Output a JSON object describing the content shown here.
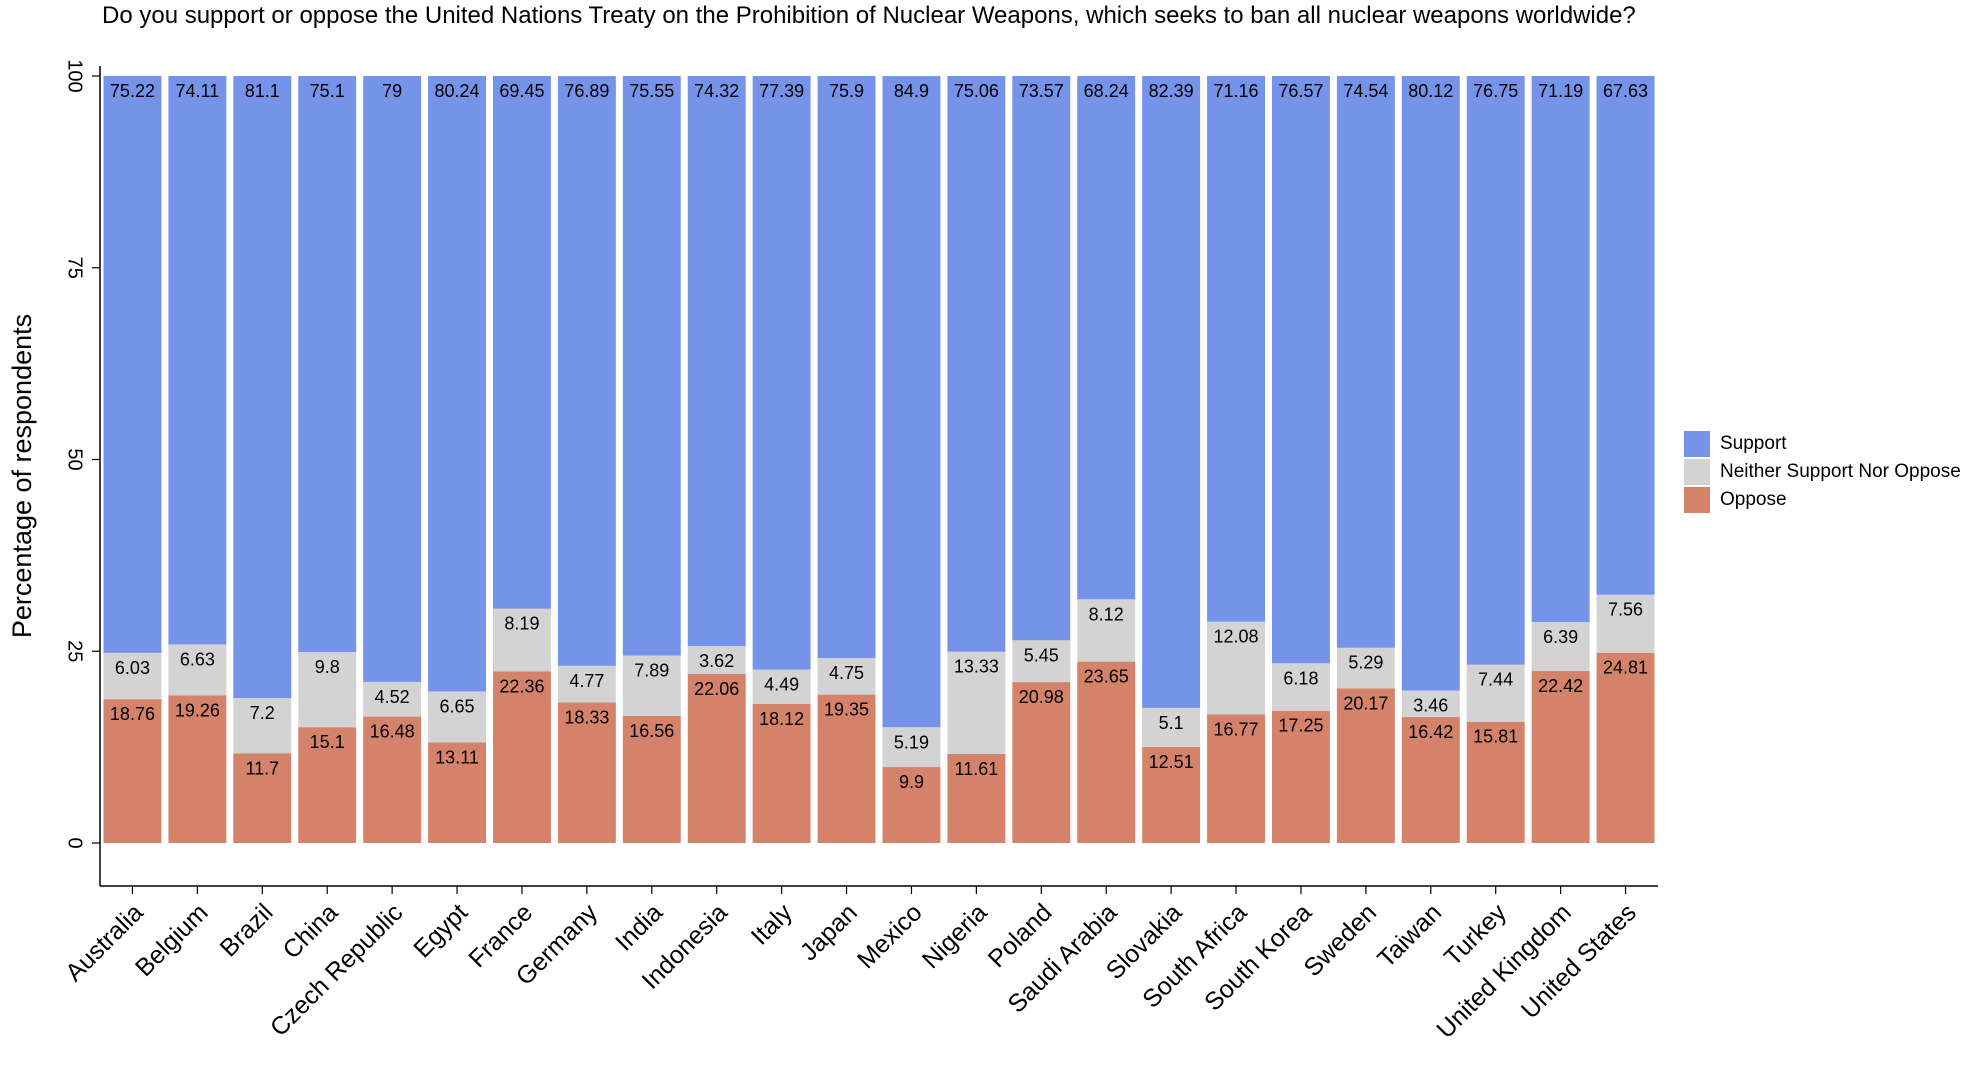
{
  "chart_data": {
    "type": "bar",
    "stacked": true,
    "title": "Do you support or oppose the United Nations Treaty on the Prohibition of Nuclear Weapons, which seeks to ban all nuclear weapons worldwide?",
    "xlabel": "",
    "ylabel": "Percentage of respondents",
    "ylim": [
      0,
      100
    ],
    "yticks": [
      "0",
      "25",
      "50",
      "75",
      "100"
    ],
    "grid": false,
    "legend_position": "right",
    "categories": [
      "Australia",
      "Belgium",
      "Brazil",
      "China",
      "Czech Republic",
      "Egypt",
      "France",
      "Germany",
      "India",
      "Indonesia",
      "Italy",
      "Japan",
      "Mexico",
      "Nigeria",
      "Poland",
      "Saudi Arabia",
      "Slovakia",
      "South Africa",
      "South Korea",
      "Sweden",
      "Taiwan",
      "Turkey",
      "United Kingdom",
      "United States"
    ],
    "series": [
      {
        "name": "Oppose",
        "color": "#d4826a",
        "values": [
          18.76,
          19.26,
          11.7,
          15.1,
          16.48,
          13.11,
          22.36,
          18.33,
          16.56,
          22.06,
          18.12,
          19.35,
          9.9,
          11.61,
          20.98,
          23.65,
          12.51,
          16.77,
          17.25,
          20.17,
          16.42,
          15.81,
          22.42,
          24.81
        ]
      },
      {
        "name": "Neither Support Nor Oppose",
        "color": "#d3d3d3",
        "values": [
          6.03,
          6.63,
          7.2,
          9.8,
          4.52,
          6.65,
          8.19,
          4.77,
          7.89,
          3.62,
          4.49,
          4.75,
          5.19,
          13.33,
          5.45,
          8.12,
          5.1,
          12.08,
          6.18,
          5.29,
          3.46,
          7.44,
          6.39,
          7.56
        ]
      },
      {
        "name": "Support",
        "color": "#7593e8",
        "values": [
          75.22,
          74.11,
          81.1,
          75.1,
          79,
          80.24,
          69.45,
          76.89,
          75.55,
          74.32,
          77.39,
          75.9,
          84.9,
          75.06,
          73.57,
          68.24,
          82.39,
          71.16,
          76.57,
          74.54,
          80.12,
          76.75,
          71.19,
          67.63
        ]
      }
    ],
    "value_labels": {
      "Oppose": [
        "18.76",
        "19.26",
        "11.7",
        "15.1",
        "16.48",
        "13.11",
        "22.36",
        "18.33",
        "16.56",
        "22.06",
        "18.12",
        "19.35",
        "9.9",
        "11.61",
        "20.98",
        "23.65",
        "12.51",
        "16.77",
        "17.25",
        "20.17",
        "16.42",
        "15.81",
        "22.42",
        "24.81"
      ],
      "Neither Support Nor Oppose": [
        "6.03",
        "6.63",
        "7.2",
        "9.8",
        "4.52",
        "6.65",
        "8.19",
        "4.77",
        "7.89",
        "3.62",
        "4.49",
        "4.75",
        "5.19",
        "13.33",
        "5.45",
        "8.12",
        "5.1",
        "12.08",
        "6.18",
        "5.29",
        "3.46",
        "7.44",
        "6.39",
        "7.56"
      ],
      "Support": [
        "75.22",
        "74.11",
        "81.1",
        "75.1",
        "79",
        "80.24",
        "69.45",
        "76.89",
        "75.55",
        "74.32",
        "77.39",
        "75.9",
        "84.9",
        "75.06",
        "73.57",
        "68.24",
        "82.39",
        "71.16",
        "76.57",
        "74.54",
        "80.12",
        "76.75",
        "71.19",
        "67.63"
      ]
    },
    "legend": [
      {
        "label": "Support",
        "color": "#7593e8"
      },
      {
        "label": "Neither Support Nor Oppose",
        "color": "#d3d3d3"
      },
      {
        "label": "Oppose",
        "color": "#d4826a"
      }
    ]
  }
}
